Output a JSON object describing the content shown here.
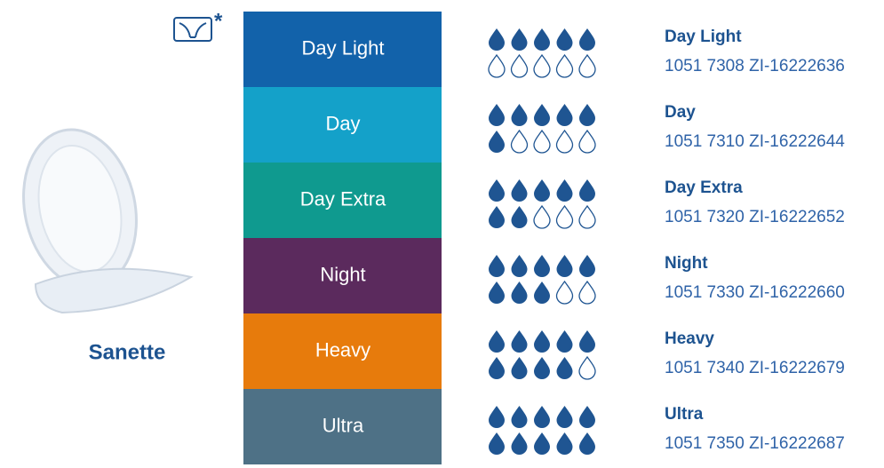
{
  "product": {
    "name": "Sanette",
    "footnote_mark": "*"
  },
  "rows": [
    {
      "label": "Day Light",
      "color": "#1262aa",
      "drops": 5,
      "name": "Day Light",
      "code": "1051 7308 ZI-16222636"
    },
    {
      "label": "Day",
      "color": "#14a1c9",
      "drops": 6,
      "name": "Day",
      "code": "1051 7310 ZI-16222644"
    },
    {
      "label": "Day Extra",
      "color": "#0f9a8f",
      "drops": 7,
      "name": "Day Extra",
      "code": "1051 7320 ZI-16222652"
    },
    {
      "label": "Night",
      "color": "#5b2a5d",
      "drops": 8,
      "name": "Night",
      "code": "1051 7330 ZI-16222660"
    },
    {
      "label": "Heavy",
      "color": "#e77b0c",
      "drops": 9,
      "name": "Heavy",
      "code": "1051 7340 ZI-16222679"
    },
    {
      "label": "Ultra",
      "color": "#4e7186",
      "drops": 10,
      "name": "Ultra",
      "code": "1051 7350 ZI-16222687"
    }
  ]
}
